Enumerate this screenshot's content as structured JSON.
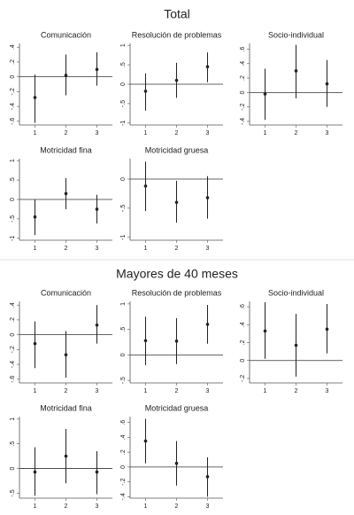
{
  "headings": [
    "Total",
    "Mayores de 40 meses"
  ],
  "chart_data": [
    {
      "type": "errorbar",
      "title": "Comunicación",
      "categories": [
        "1",
        "2",
        "3"
      ],
      "values": [
        -0.28,
        0.02,
        0.1
      ],
      "lower": [
        -0.62,
        -0.25,
        -0.12
      ],
      "upper": [
        0.03,
        0.3,
        0.33
      ],
      "color": "#222222",
      "ylim": [
        -0.65,
        0.45
      ],
      "yticks": [
        {
          "value": 0.4,
          "label": ".4"
        },
        {
          "value": 0.2,
          "label": ".2"
        },
        0,
        {
          "value": -0.2,
          "label": "-.2"
        },
        {
          "value": -0.4,
          "label": "-.4"
        },
        {
          "value": -0.6,
          "label": "-.6"
        }
      ],
      "grid": false
    },
    {
      "type": "errorbar",
      "title": "Resolución de problemas",
      "categories": [
        "1",
        "2",
        "3"
      ],
      "values": [
        -0.18,
        0.1,
        0.45
      ],
      "lower": [
        -0.68,
        -0.35,
        0.05
      ],
      "upper": [
        0.28,
        0.55,
        0.82
      ],
      "color": "#222222",
      "ylim": [
        -1.05,
        1.05
      ],
      "yticks": [
        1,
        {
          "value": 0.5,
          "label": ".5"
        },
        0,
        {
          "value": -0.5,
          "label": "-.5"
        },
        -1
      ],
      "grid": false
    },
    {
      "type": "errorbar",
      "title": "Socio-individual",
      "categories": [
        "1",
        "2",
        "3"
      ],
      "values": [
        -0.02,
        0.3,
        0.12
      ],
      "lower": [
        -0.38,
        -0.08,
        -0.2
      ],
      "upper": [
        0.33,
        0.66,
        0.45
      ],
      "color": "#222222",
      "ylim": [
        -0.45,
        0.68
      ],
      "yticks": [
        {
          "value": 0.6,
          "label": ".6"
        },
        {
          "value": 0.4,
          "label": ".4"
        },
        {
          "value": 0.2,
          "label": ".2"
        },
        0,
        {
          "value": -0.2,
          "label": "-.2"
        },
        {
          "value": -0.4,
          "label": "-.4"
        }
      ],
      "grid": false
    },
    {
      "type": "errorbar",
      "title": "Motricidad fina",
      "categories": [
        "1",
        "2",
        "3"
      ],
      "values": [
        -0.45,
        0.15,
        -0.25
      ],
      "lower": [
        -0.92,
        -0.25,
        -0.62
      ],
      "upper": [
        0.0,
        0.55,
        0.12
      ],
      "color": "#222222",
      "ylim": [
        -1.05,
        1.05
      ],
      "yticks": [
        1,
        {
          "value": 0.5,
          "label": ".5"
        },
        0,
        {
          "value": -0.5,
          "label": "-.5"
        },
        -1
      ],
      "grid": false
    },
    {
      "type": "errorbar",
      "title": "Motricidad gruesa",
      "categories": [
        "1",
        "2",
        "3"
      ],
      "values": [
        -0.12,
        -0.4,
        -0.32
      ],
      "lower": [
        -0.55,
        -0.75,
        -0.68
      ],
      "upper": [
        0.3,
        -0.03,
        0.05
      ],
      "color": "#222222",
      "ylim": [
        -1.05,
        0.35
      ],
      "yticks": [
        0,
        {
          "value": -0.5,
          "label": "-.5"
        },
        -1
      ],
      "grid": false
    },
    {
      "type": "errorbar",
      "title": "Comunicación",
      "categories": [
        "1",
        "2",
        "3"
      ],
      "values": [
        -0.12,
        -0.27,
        0.13
      ],
      "lower": [
        -0.45,
        -0.58,
        -0.12
      ],
      "upper": [
        0.18,
        0.05,
        0.4
      ],
      "color": "#222222",
      "ylim": [
        -0.65,
        0.45
      ],
      "yticks": [
        {
          "value": 0.4,
          "label": ".4"
        },
        {
          "value": 0.2,
          "label": ".2"
        },
        0,
        {
          "value": -0.2,
          "label": "-.2"
        },
        {
          "value": -0.4,
          "label": "-.4"
        },
        {
          "value": -0.6,
          "label": "-.6"
        }
      ],
      "grid": false
    },
    {
      "type": "errorbar",
      "title": "Resolución de problemas",
      "categories": [
        "1",
        "2",
        "3"
      ],
      "values": [
        0.28,
        0.27,
        0.6
      ],
      "lower": [
        -0.2,
        -0.18,
        0.22
      ],
      "upper": [
        0.75,
        0.72,
        0.98
      ],
      "color": "#222222",
      "ylim": [
        -0.55,
        1.05
      ],
      "yticks": [
        1,
        {
          "value": 0.5,
          "label": ".5"
        },
        0,
        {
          "value": -0.5,
          "label": "-.5"
        }
      ],
      "grid": false
    },
    {
      "type": "errorbar",
      "title": "Socio-individual",
      "categories": [
        "1",
        "2",
        "3"
      ],
      "values": [
        0.33,
        0.17,
        0.35
      ],
      "lower": [
        0.02,
        -0.18,
        0.08
      ],
      "upper": [
        0.65,
        0.52,
        0.63
      ],
      "color": "#222222",
      "ylim": [
        -0.25,
        0.66
      ],
      "yticks": [
        {
          "value": 0.6,
          "label": ".6"
        },
        {
          "value": 0.4,
          "label": ".4"
        },
        {
          "value": 0.2,
          "label": ".2"
        },
        0,
        {
          "value": -0.2,
          "label": "-.2"
        }
      ],
      "grid": false
    },
    {
      "type": "errorbar",
      "title": "Motricidad fina",
      "categories": [
        "1",
        "2",
        "3"
      ],
      "values": [
        -0.07,
        0.25,
        -0.07
      ],
      "lower": [
        -0.55,
        -0.3,
        -0.52
      ],
      "upper": [
        0.43,
        0.8,
        0.35
      ],
      "color": "#222222",
      "ylim": [
        -0.6,
        1.05
      ],
      "yticks": [
        1,
        {
          "value": 0.5,
          "label": ".5"
        },
        0,
        {
          "value": -0.5,
          "label": "-.5"
        }
      ],
      "grid": false
    },
    {
      "type": "errorbar",
      "title": "Motricidad gruesa",
      "categories": [
        "1",
        "2",
        "3"
      ],
      "values": [
        0.35,
        0.05,
        -0.13
      ],
      "lower": [
        0.05,
        -0.25,
        -0.4
      ],
      "upper": [
        0.65,
        0.35,
        0.13
      ],
      "color": "#222222",
      "ylim": [
        -0.42,
        0.68
      ],
      "yticks": [
        {
          "value": 0.6,
          "label": ".6"
        },
        {
          "value": 0.4,
          "label": ".4"
        },
        {
          "value": 0.2,
          "label": ".2"
        },
        0,
        {
          "value": -0.2,
          "label": "-.2"
        },
        {
          "value": -0.4,
          "label": "-.4"
        }
      ],
      "grid": false
    }
  ]
}
